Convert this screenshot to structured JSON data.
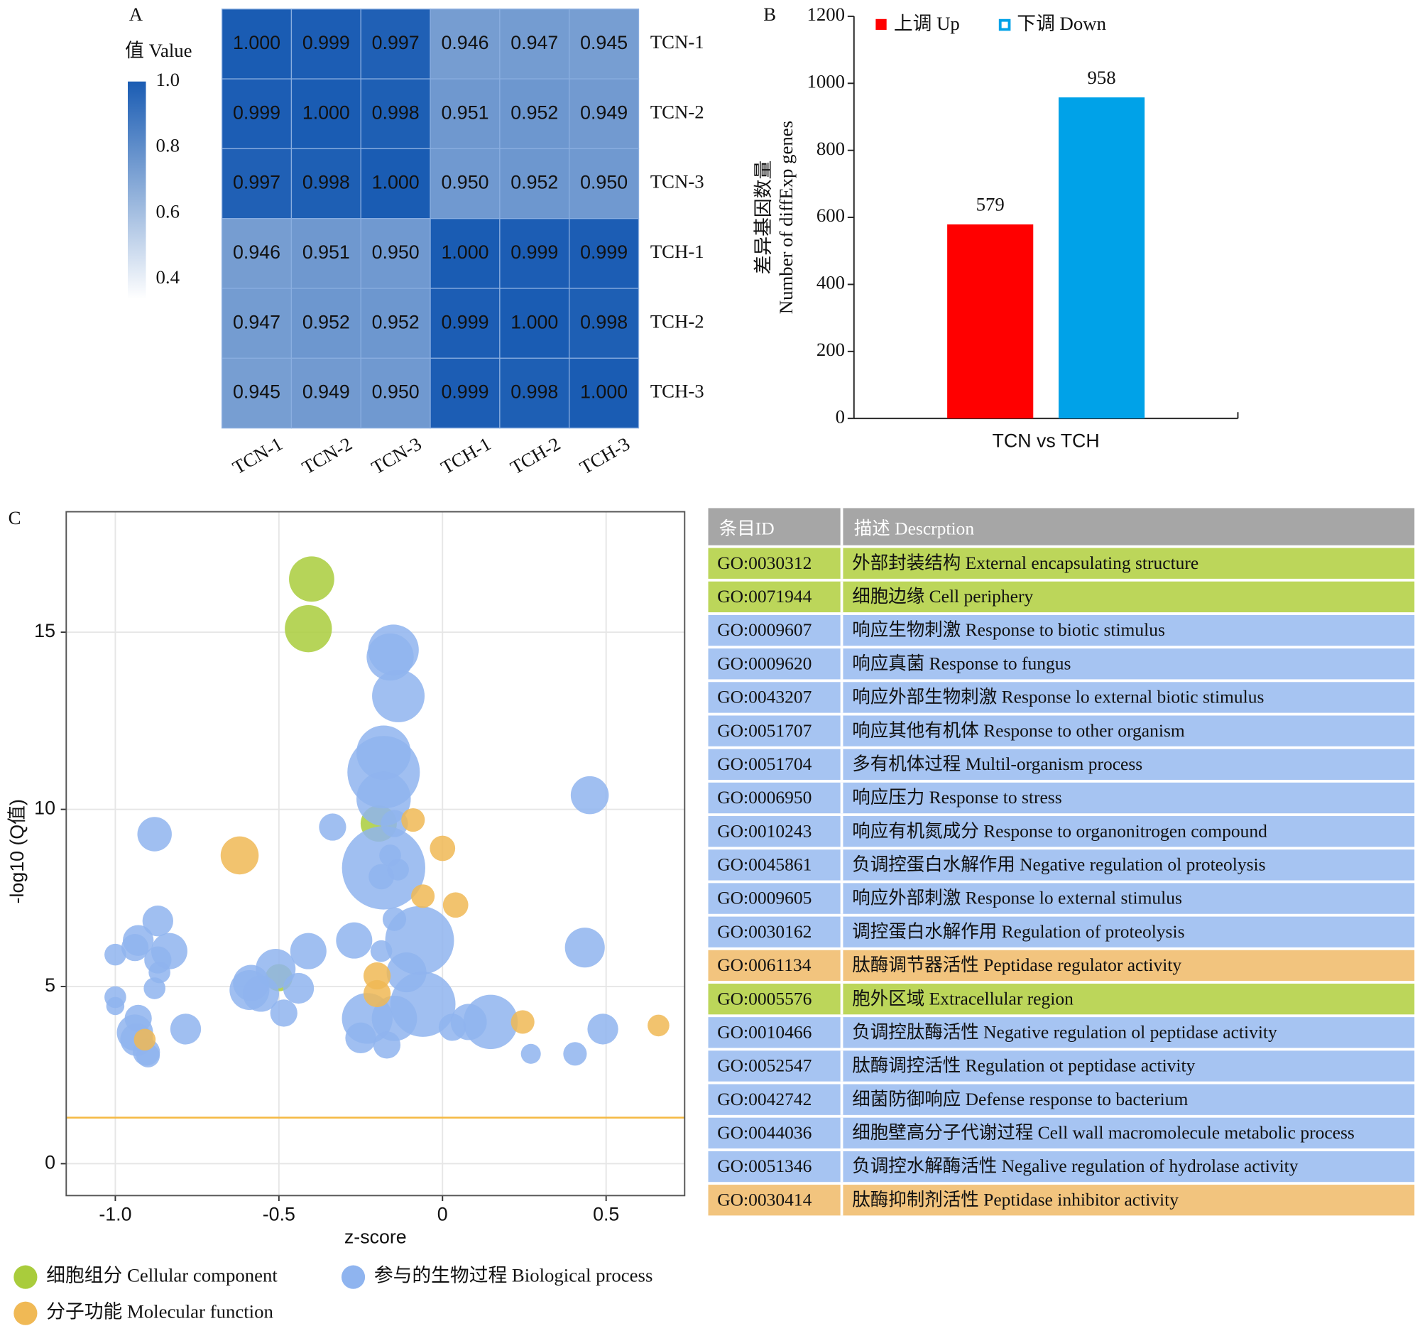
{
  "chart_data": [
    {
      "type": "heatmap",
      "panel": "A",
      "colorbar_title": "值 Value",
      "color": "#1a5cb3",
      "rows": [
        "TCN-1",
        "TCN-2",
        "TCN-3",
        "TCH-1",
        "TCH-2",
        "TCH-3"
      ],
      "columns": [
        "TCN-1",
        "TCN-2",
        "TCN-3",
        "TCH-1",
        "TCH-2",
        "TCH-3"
      ],
      "values": [
        [
          1,
          0.999,
          0.997,
          0.946,
          0.947,
          0.945
        ],
        [
          0.999,
          1,
          0.998,
          0.951,
          0.952,
          0.949
        ],
        [
          0.997,
          0.998,
          1,
          0.95,
          0.952,
          0.95
        ],
        [
          0.946,
          0.951,
          0.95,
          1,
          0.999,
          0.999
        ],
        [
          0.947,
          0.952,
          0.952,
          0.999,
          1,
          0.998
        ],
        [
          0.945,
          0.949,
          0.95,
          0.999,
          0.998,
          1
        ]
      ],
      "value_labels": [
        [
          "1.000",
          "0.999",
          "0.997",
          "0.946",
          "0.947",
          "0.945"
        ],
        [
          "0.999",
          "1.000",
          "0.998",
          "0.951",
          "0.952",
          "0.949"
        ],
        [
          "0.997",
          "0.998",
          "1.000",
          "0.950",
          "0.952",
          "0.950"
        ],
        [
          "0.946",
          "0.951",
          "0.950",
          "1.000",
          "0.999",
          "0.999"
        ],
        [
          "0.947",
          "0.952",
          "0.952",
          "0.999",
          "1.000",
          "0.998"
        ],
        [
          "0.945",
          "0.949",
          "0.950",
          "0.999",
          "0.998",
          "1.000"
        ]
      ],
      "clim": [
        0.34,
        1
      ],
      "cticks": [
        {
          "value": 1,
          "label": "1.0"
        },
        0.8,
        0.6,
        0.4
      ]
    },
    {
      "type": "bar",
      "panel": "B",
      "ylabel": [
        "差异基因数量",
        "Number of diffExp genes"
      ],
      "categories": [
        "TCN vs TCH"
      ],
      "series": [
        {
          "name": "上调 Up",
          "color": "#ff0000",
          "values": [
            579
          ]
        },
        {
          "name": "下调 Down",
          "color": "#00a2e8",
          "values": [
            958
          ]
        }
      ],
      "ylim": [
        0,
        1200
      ],
      "yticks": [
        0,
        200,
        400,
        600,
        800,
        1000,
        1200
      ]
    },
    {
      "type": "bubble",
      "panel": "C",
      "xlabel": "z-score",
      "ylabel": "-log10 (Q值)",
      "xlim": [
        -1.15,
        0.74
      ],
      "ylim": [
        -0.9,
        18.4
      ],
      "xticks": [
        {
          "value": -1,
          "label": "-1.0"
        },
        {
          "value": -0.5,
          "label": "-0.5"
        },
        0,
        0.5
      ],
      "yticks": [
        0,
        5,
        10,
        15
      ],
      "grid": true,
      "threshold": 1.3,
      "threshold_color": "#f5b942",
      "series": [
        {
          "name": "细胞组分 Cellular component",
          "color": "#a9cc3c",
          "x": [
            -0.4,
            -0.41,
            -0.195,
            -0.5
          ],
          "values": [
            16.5,
            15.1,
            9.6,
            5.25
          ],
          "sizes": [
            25,
            26,
            20,
            15
          ]
        },
        {
          "name": "参与的生物过程 Biological process",
          "color": "#8fb4ef",
          "x": [
            -0.88,
            -0.15,
            -0.16,
            -0.135,
            -0.18,
            -0.18,
            -0.18,
            -0.147,
            -0.336,
            -0.18,
            -0.16,
            -0.187,
            -0.136,
            0.45,
            -0.147,
            -0.07,
            -0.27,
            -0.187,
            -0.41,
            0.435,
            -0.11,
            -0.06,
            -0.23,
            -0.147,
            0.03,
            0.08,
            0.147,
            -0.25,
            -0.17,
            0.27,
            0.405,
            0.49,
            -0.51,
            -0.585,
            -0.59,
            -0.555,
            -0.44,
            -0.485,
            -0.785,
            -0.87,
            -0.835,
            -0.93,
            -0.94,
            -0.87,
            -0.865,
            -1.0,
            -0.88,
            -1.0,
            -1.0,
            -0.93,
            -0.94,
            -0.935,
            -0.905,
            -0.9
          ],
          "values": [
            9.3,
            14.5,
            14.3,
            13.2,
            11.05,
            11.6,
            10.3,
            9.6,
            9.5,
            8.35,
            8.7,
            8.1,
            8.3,
            10.4,
            6.9,
            6.3,
            6.3,
            6.0,
            6.0,
            6.1,
            5.4,
            4.5,
            4.1,
            4.1,
            3.85,
            4.0,
            4.0,
            3.55,
            3.35,
            3.1,
            3.1,
            3.8,
            5.5,
            5.1,
            4.9,
            4.8,
            4.95,
            4.25,
            3.8,
            6.85,
            6.0,
            6.3,
            6.1,
            5.75,
            5.4,
            5.9,
            4.95,
            4.7,
            4.45,
            4.1,
            3.7,
            3.5,
            3.15,
            3.05
          ],
          "sizes": [
            19,
            28,
            26,
            29,
            40,
            30,
            30,
            15,
            15,
            46,
            12,
            14,
            12,
            21,
            13,
            38,
            20,
            12,
            20,
            22,
            22,
            36,
            28,
            25,
            15,
            20,
            30,
            17,
            15,
            11,
            13,
            17,
            22,
            20,
            22,
            20,
            17,
            15,
            17,
            17,
            20,
            17,
            15,
            15,
            12,
            12,
            12,
            12,
            10,
            15,
            20,
            18,
            15,
            13
          ]
        },
        {
          "name": "分子功能 Molecular function",
          "color": "#f0b955",
          "x": [
            -0.62,
            -0.09,
            0,
            -0.06,
            0.04,
            -0.2,
            -0.2,
            0.245,
            0.66,
            -0.91
          ],
          "values": [
            8.7,
            9.7,
            8.9,
            7.55,
            7.3,
            5.3,
            4.8,
            4.0,
            3.9,
            3.5
          ],
          "sizes": [
            21,
            13,
            14,
            13,
            14,
            15,
            15,
            13,
            12,
            12
          ]
        }
      ]
    }
  ],
  "table": {
    "header": [
      "条目ID",
      "描述 Descrption"
    ],
    "rows": [
      {
        "id": "GO:0030312",
        "description": "外部封装结构 External encapsulating structure",
        "fill": "#bcd65a"
      },
      {
        "id": "GO:0071944",
        "description": "细胞边缘 Cell periphery",
        "fill": "#bcd65a"
      },
      {
        "id": "GO:0009607",
        "description": "响应生物刺激 Response to biotic stimulus",
        "fill": "#a6c4f2"
      },
      {
        "id": "GO:0009620",
        "description": "响应真菌 Response to fungus",
        "fill": "#a6c4f2"
      },
      {
        "id": "GO:0043207",
        "description": "响应外部生物刺激 Response lo external  biotic stimulus",
        "fill": "#a6c4f2"
      },
      {
        "id": "GO:0051707",
        "description": "响应其他有机体 Response to other organism",
        "fill": "#a6c4f2"
      },
      {
        "id": "GO:0051704",
        "description": "多有机体过程 Multil-organism process",
        "fill": "#a6c4f2"
      },
      {
        "id": "GO:0006950",
        "description": "响应压力 Response to stress",
        "fill": "#a6c4f2"
      },
      {
        "id": "GO:0010243",
        "description": "响应有机氮成分 Response to organonitrogen compound",
        "fill": "#a6c4f2"
      },
      {
        "id": "GO:0045861",
        "description": "负调控蛋白水解作用 Negative regulation ol proteolysis",
        "fill": "#a6c4f2"
      },
      {
        "id": "GO:0009605",
        "description": "响应外部刺激 Response lo external stimulus",
        "fill": "#a6c4f2"
      },
      {
        "id": "GO:0030162",
        "description": "调控蛋白水解作用 Regulation of proteolysis",
        "fill": "#a6c4f2"
      },
      {
        "id": "GO:0061134",
        "description": "肽酶调节器活性 Peptidase regulator activity",
        "fill": "#f2c47e"
      },
      {
        "id": "GO:0005576",
        "description": "胞外区域 Extracellular region",
        "fill": "#bcd65a"
      },
      {
        "id": "GO:0010466",
        "description": "负调控肽酶活性 Negative regulation ol peptidase activity",
        "fill": "#a6c4f2"
      },
      {
        "id": "GO:0052547",
        "description": "肽酶调控活性 Regulation ot peptidase activity",
        "fill": "#a6c4f2"
      },
      {
        "id": "GO:0042742",
        "description": "细菌防御响应 Defense response to bacterium",
        "fill": "#a6c4f2"
      },
      {
        "id": "GO:0044036",
        "description": "细胞壁高分子代谢过程 Cell wall macromolecule metabolic process",
        "fill": "#a6c4f2"
      },
      {
        "id": "GO:0051346",
        "description": "负调控水解酶活性 Negalive regulation of hydrolase activity",
        "fill": "#a6c4f2"
      },
      {
        "id": "GO:0030414",
        "description": "肽酶抑制剂活性 Peptidase inhibitor activity",
        "fill": "#f2c47e"
      }
    ]
  }
}
